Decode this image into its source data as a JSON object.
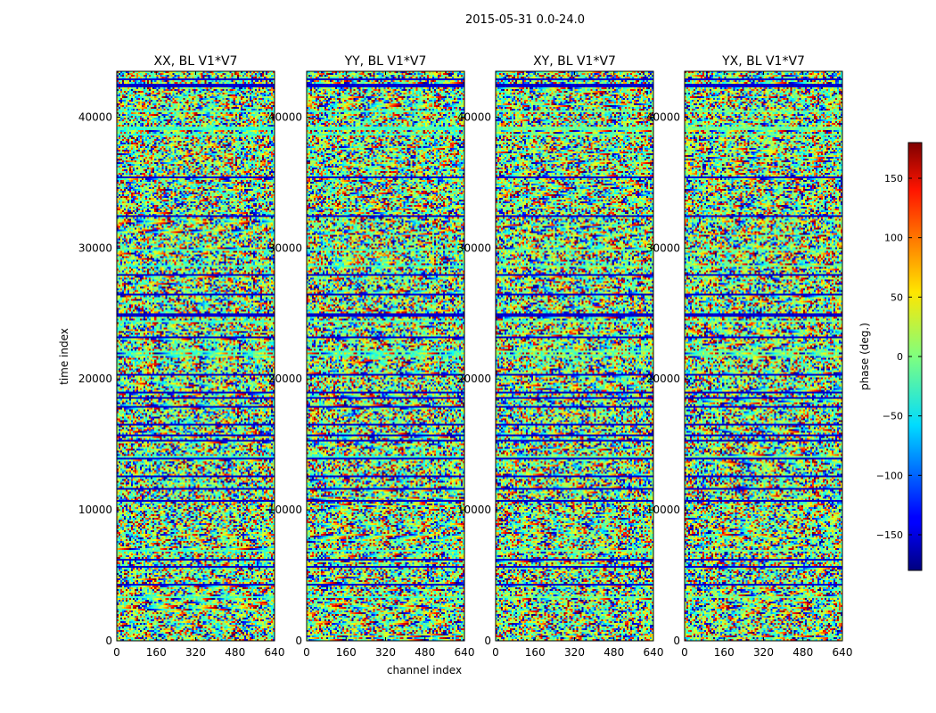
{
  "figure": {
    "suptitle": "2015-05-31 0.0-24.0"
  },
  "chart_data": {
    "type": "heatmap",
    "suptitle": "2015-05-31 0.0-24.0",
    "xlabel": "channel index",
    "ylabel": "time index",
    "xlim": [
      0,
      640
    ],
    "ylim": [
      0,
      43500
    ],
    "xticks": [
      0,
      160,
      320,
      480,
      640
    ],
    "yticks": [
      0,
      10000,
      20000,
      30000,
      40000
    ],
    "panels": [
      {
        "title": "XX, BL V1*V7",
        "polarization": "XX"
      },
      {
        "title": "YY, BL V1*V7",
        "polarization": "YY"
      },
      {
        "title": "XY, BL V1*V7",
        "polarization": "XY"
      },
      {
        "title": "YX, BL V1*V7",
        "polarization": "YX"
      }
    ],
    "colorbar": {
      "label": "phase (deg.)",
      "range": [
        -180,
        180
      ],
      "ticks": [
        -150,
        -100,
        -50,
        0,
        50,
        100,
        150
      ],
      "colormap": "jet"
    },
    "grid": false,
    "legend": "none"
  }
}
